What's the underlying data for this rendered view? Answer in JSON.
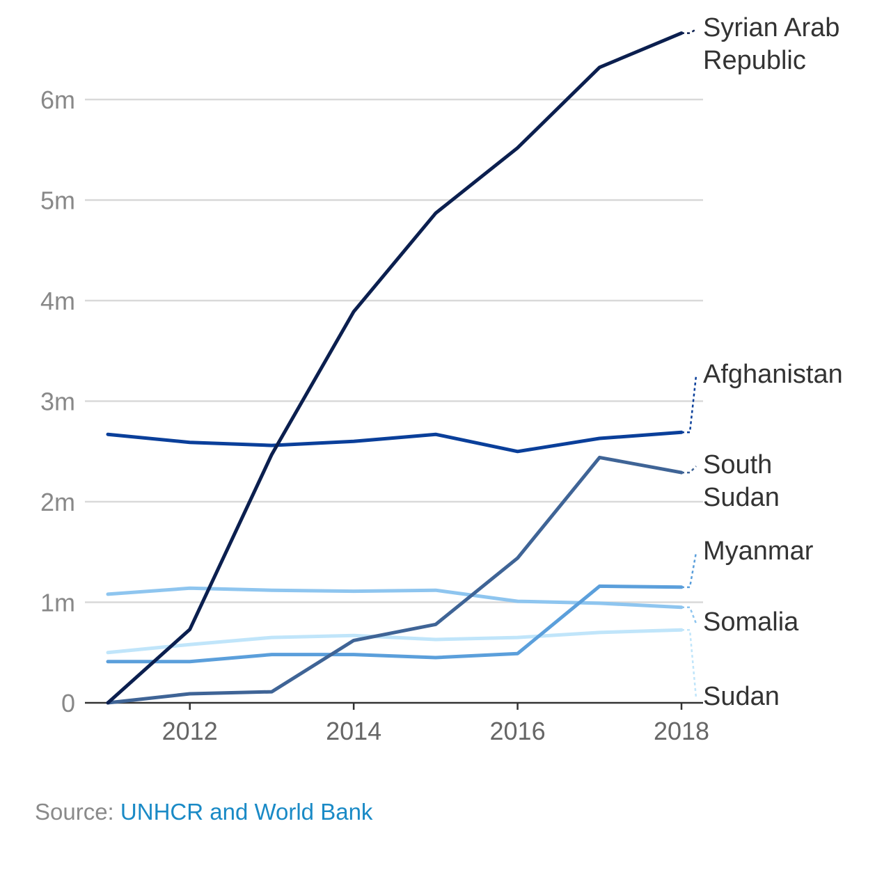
{
  "chart_data": {
    "type": "line",
    "x": [
      2011,
      2012,
      2013,
      2014,
      2015,
      2016,
      2017,
      2018
    ],
    "x_ticks": [
      2012,
      2014,
      2016,
      2018
    ],
    "x_tick_labels": [
      "2012",
      "2014",
      "2016",
      "2018"
    ],
    "ylim": [
      0,
      6700000
    ],
    "y_ticks": [
      0,
      1000000,
      2000000,
      3000000,
      4000000,
      5000000,
      6000000
    ],
    "y_tick_labels": [
      "0",
      "1m",
      "2m",
      "3m",
      "4m",
      "5m",
      "6m"
    ],
    "grid": true,
    "legend": "direct-labels-right",
    "series": [
      {
        "name": "Syrian Arab Republic",
        "label_lines": [
          "Syrian Arab",
          "Republic"
        ],
        "color": "#0b1f4f",
        "values": [
          0,
          730000,
          2470000,
          3890000,
          4870000,
          5520000,
          6320000,
          6660000
        ]
      },
      {
        "name": "Afghanistan",
        "label_lines": [
          "Afghanistan"
        ],
        "color": "#0a3f9a",
        "values": [
          2670000,
          2590000,
          2560000,
          2600000,
          2670000,
          2500000,
          2630000,
          2690000
        ]
      },
      {
        "name": "South Sudan",
        "label_lines": [
          "South",
          "Sudan"
        ],
        "color": "#3f6496",
        "values": [
          0,
          90000,
          110000,
          620000,
          780000,
          1440000,
          2440000,
          2290000
        ]
      },
      {
        "name": "Myanmar",
        "label_lines": [
          "Myanmar"
        ],
        "color": "#5b9fdb",
        "values": [
          410000,
          410000,
          480000,
          480000,
          450000,
          490000,
          1160000,
          1150000
        ]
      },
      {
        "name": "Somalia",
        "label_lines": [
          "Somalia"
        ],
        "color": "#8ec5ef",
        "values": [
          1080000,
          1140000,
          1120000,
          1110000,
          1120000,
          1010000,
          990000,
          950000
        ]
      },
      {
        "name": "Sudan",
        "label_lines": [
          "Sudan"
        ],
        "color": "#c0e5fa",
        "values": [
          500000,
          580000,
          650000,
          670000,
          630000,
          650000,
          700000,
          725000
        ]
      }
    ]
  },
  "source": {
    "prefix": "Source: ",
    "link_text": "UNHCR and World Bank"
  }
}
